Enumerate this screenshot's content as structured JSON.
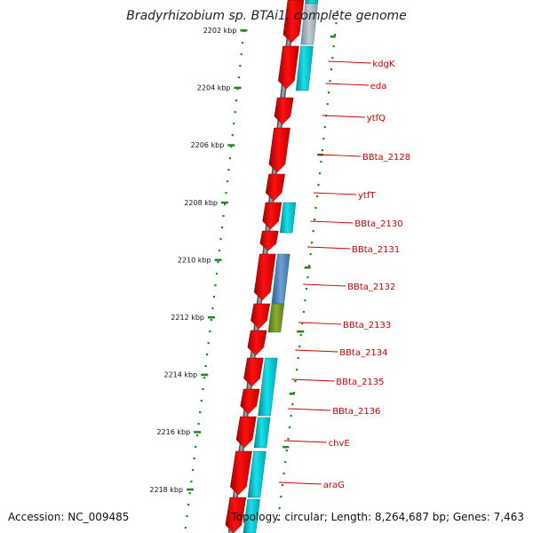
{
  "title": "Bradyrhizobium sp. BTAi1, complete genome",
  "accession": "Accession: NC_009485",
  "topology": "Topology: circular; Length: 8,264,687 bp; Genes: 7,463",
  "colors": {
    "backbone": "#808080",
    "forward_cds": "#ff0000",
    "reverse_cds": "#00c8d2",
    "tick": "#1e8a1e",
    "label": "#cc0000"
  },
  "ruler": {
    "ticks": [
      "2202 kbp",
      "2204 kbp",
      "2206 kbp",
      "2208 kbp",
      "2210 kbp",
      "2212 kbp",
      "2214 kbp",
      "2216 kbp",
      "2218 kbp"
    ]
  },
  "genes": [
    "kdgK",
    "eda",
    "ytfQ",
    "BBta_2128",
    "ytfT",
    "BBta_2130",
    "BBta_2131",
    "BBta_2132",
    "BBta_2133",
    "BBta_2134",
    "BBta_2135",
    "BBta_2136",
    "chvE",
    "araG"
  ]
}
